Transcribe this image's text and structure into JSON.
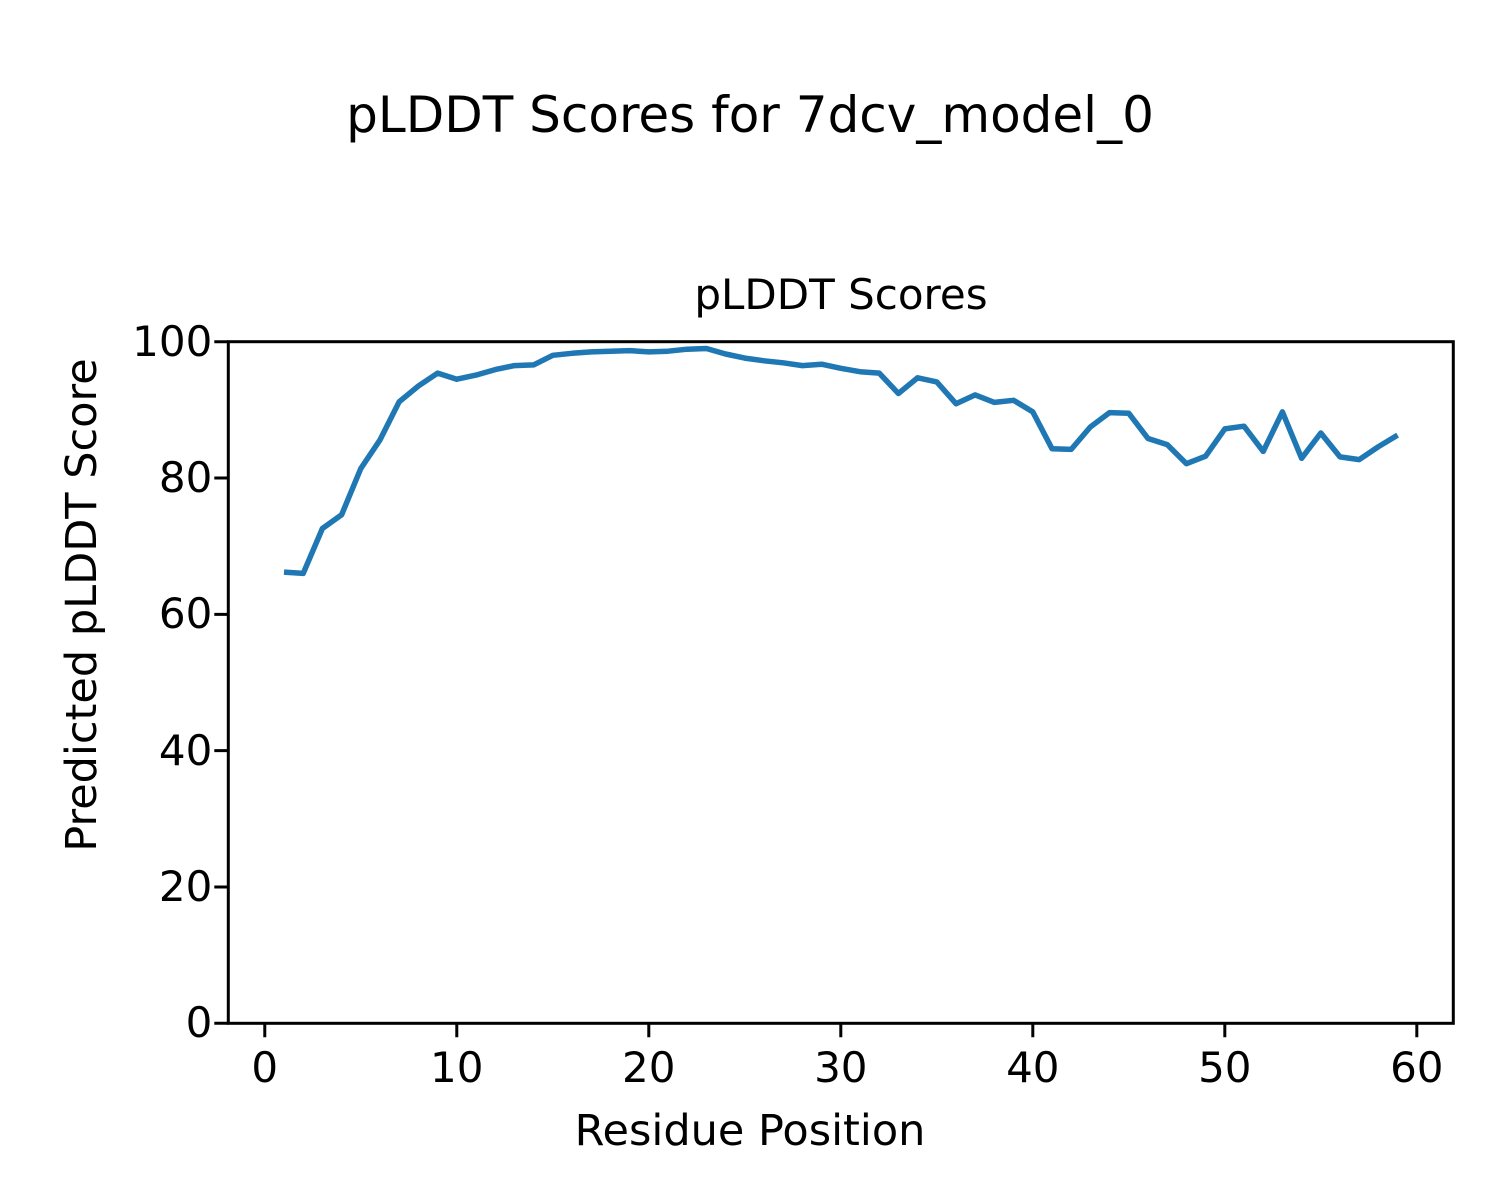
{
  "figure": {
    "suptitle": "pLDDT Scores for 7dcv_model_0",
    "background": "#ffffff",
    "text_color": "#000000"
  },
  "chart_data": {
    "type": "line",
    "title": "pLDDT Scores",
    "xlabel": "Residue Position",
    "ylabel": "Predicted pLDDT Score",
    "xlim": [
      -1.9,
      61.9
    ],
    "ylim": [
      0,
      100
    ],
    "x_ticks": [
      0,
      10,
      20,
      30,
      40,
      50,
      60
    ],
    "y_ticks": [
      0,
      20,
      40,
      60,
      80,
      100
    ],
    "grid": false,
    "legend": "none",
    "line_color": "#1f77b4",
    "line_width": 5.5,
    "series": [
      {
        "name": "pLDDT",
        "x": [
          1,
          2,
          3,
          4,
          5,
          6,
          7,
          8,
          9,
          10,
          11,
          12,
          13,
          14,
          15,
          16,
          17,
          18,
          19,
          20,
          21,
          22,
          23,
          24,
          25,
          26,
          27,
          28,
          29,
          30,
          31,
          32,
          33,
          34,
          35,
          36,
          37,
          38,
          39,
          40,
          41,
          42,
          43,
          44,
          45,
          46,
          47,
          48,
          49,
          50,
          51,
          52,
          53,
          54,
          55,
          56,
          57,
          58,
          59
        ],
        "values": [
          66.2,
          66.0,
          72.6,
          74.6,
          81.4,
          85.6,
          91.2,
          93.5,
          95.4,
          94.5,
          95.1,
          95.9,
          96.5,
          96.6,
          98.0,
          98.3,
          98.5,
          98.6,
          98.7,
          98.5,
          98.6,
          98.9,
          99.0,
          98.2,
          97.6,
          97.2,
          96.9,
          96.5,
          96.7,
          96.1,
          95.6,
          95.4,
          92.4,
          94.7,
          94.1,
          90.9,
          92.2,
          91.1,
          91.4,
          89.7,
          84.3,
          84.2,
          87.5,
          89.6,
          89.5,
          85.8,
          84.9,
          82.1,
          83.2,
          87.2,
          87.6,
          83.9,
          89.7,
          82.9,
          86.6,
          83.1,
          82.7,
          84.6,
          86.3
        ]
      }
    ]
  }
}
